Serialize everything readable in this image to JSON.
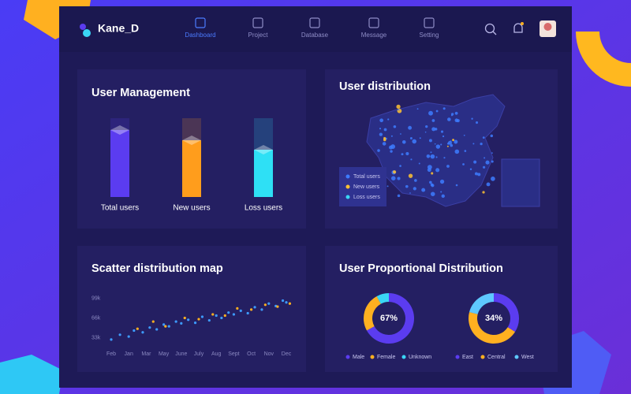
{
  "header": {
    "brand": "Kane_D",
    "nav": [
      "Dashboard",
      "Project",
      "Database",
      "Message",
      "Setting"
    ],
    "active": 0
  },
  "chart_data": [
    {
      "type": "bar",
      "title": "User Management",
      "categories": [
        "Total users",
        "New users",
        "Loss users"
      ],
      "values": [
        85,
        72,
        60
      ],
      "colors": [
        "#5b3cf0",
        "#ff9d1c",
        "#2ee0f5"
      ],
      "ylim": [
        0,
        100
      ]
    },
    {
      "type": "map",
      "title": "User distribution",
      "series": [
        {
          "name": "Total users",
          "color": "#3d7bff"
        },
        {
          "name": "New users",
          "color": "#ffc233"
        },
        {
          "name": "Loss users",
          "color": "#3ad6f5"
        }
      ]
    },
    {
      "type": "scatter",
      "title": "Scatter distribution map",
      "xticks": [
        {
          "value": 0,
          "label": "Feb"
        },
        {
          "value": 1,
          "label": "Jan"
        },
        {
          "value": 2,
          "label": "Mar"
        },
        {
          "value": 3,
          "label": "May"
        },
        {
          "value": 4,
          "label": "June"
        },
        {
          "value": 5,
          "label": "July"
        },
        {
          "value": 6,
          "label": "Aug"
        },
        {
          "value": 7,
          "label": "Sept"
        },
        {
          "value": 8,
          "label": "Oct"
        },
        {
          "value": 9,
          "label": "Nov"
        },
        {
          "value": 10,
          "label": "Dec"
        }
      ],
      "xlim": [
        -0.3,
        10.3
      ],
      "yticks": [
        {
          "value": 33000,
          "label": "33k"
        },
        {
          "value": 66000,
          "label": "66k"
        },
        {
          "value": 99000,
          "label": "99k"
        }
      ],
      "ylim": [
        18000,
        118000
      ],
      "grid": false,
      "series": [
        {
          "color": "#3d9bff",
          "x": [
            0,
            0.5,
            1,
            1.3,
            1.8,
            2.2,
            2.6,
            3,
            3.3,
            3.7,
            4,
            4.4,
            4.8,
            5.2,
            5.6,
            6,
            6.3,
            6.7,
            7,
            7.4,
            7.8,
            8.2,
            8.6,
            9,
            9.4,
            9.8,
            10
          ],
          "values": [
            30000,
            38000,
            35000,
            45000,
            42000,
            50000,
            47000,
            55000,
            52000,
            60000,
            57000,
            63000,
            58000,
            68000,
            62000,
            70000,
            66000,
            75000,
            72000,
            78000,
            74000,
            84000,
            80000,
            90000,
            86000,
            95000,
            92000
          ]
        },
        {
          "color": "#ffb020",
          "x": [
            1.5,
            2.4,
            3.1,
            4.2,
            5,
            5.8,
            6.5,
            7.2,
            8,
            8.8,
            9.5,
            10.2
          ],
          "values": [
            48000,
            60000,
            52000,
            66000,
            64000,
            72000,
            70000,
            82000,
            80000,
            88000,
            85000,
            90000
          ]
        }
      ]
    },
    {
      "type": "pie",
      "title": "User Proportional Distribution",
      "categories": [
        "Male",
        "Female",
        "Unknown"
      ],
      "values": [
        67,
        25,
        8
      ],
      "value_labels": [
        "67%",
        null,
        null
      ],
      "colors": [
        "#5b3cf0",
        "#ffb020",
        "#3ad6f5"
      ]
    },
    {
      "type": "pie",
      "categories": [
        "East",
        "Central",
        "West"
      ],
      "values": [
        34,
        45,
        21
      ],
      "value_labels": [
        "34%",
        null,
        null
      ],
      "colors": [
        "#5b3cf0",
        "#ffb020",
        "#5ec8ff"
      ]
    }
  ]
}
